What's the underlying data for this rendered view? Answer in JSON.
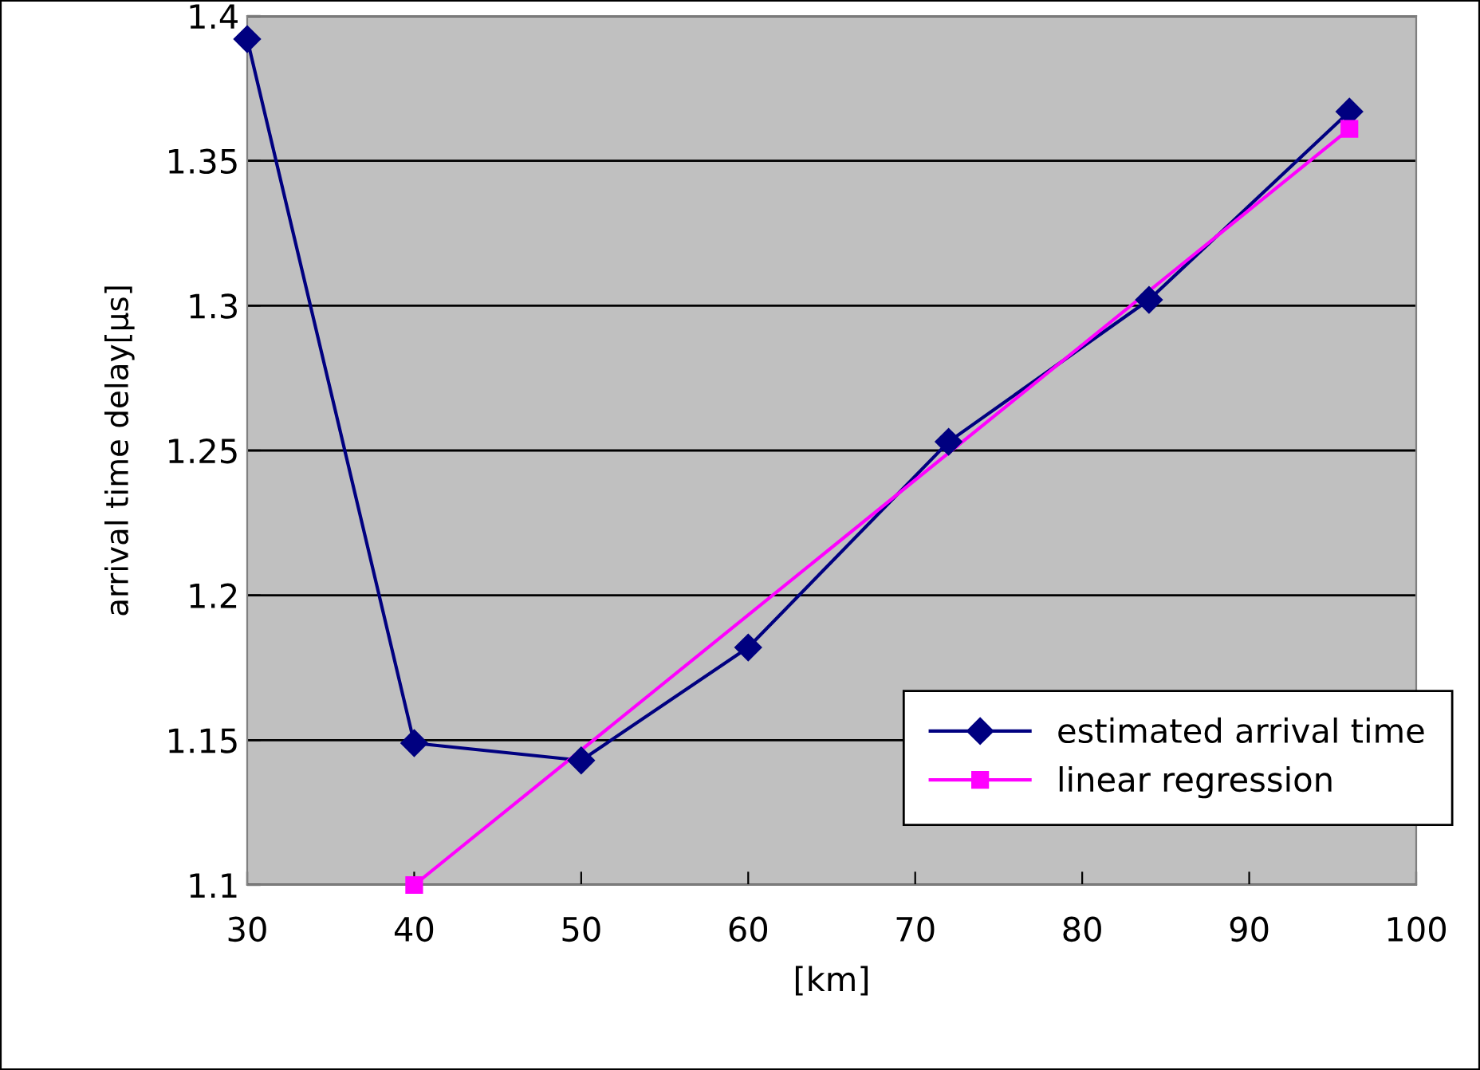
{
  "chart_data": {
    "type": "line",
    "xlabel": "[km]",
    "ylabel": "arrival time delay[μs]",
    "xlim": [
      30,
      100
    ],
    "xticks": [
      30,
      40,
      50,
      60,
      70,
      80,
      90,
      100
    ],
    "ylim": [
      1.1,
      1.4
    ],
    "yticks": [
      1.1,
      1.15,
      1.2,
      1.25,
      1.3,
      1.35,
      1.4
    ],
    "grid": "y",
    "legend": "bottom right",
    "series": [
      {
        "name": "estimated arrival time",
        "color": "#000080",
        "marker": "diamond",
        "x": [
          30,
          40,
          50,
          60,
          72,
          84,
          96
        ],
        "values": [
          1.392,
          1.149,
          1.143,
          1.182,
          1.253,
          1.302,
          1.367
        ]
      },
      {
        "name": "linear regression",
        "color": "#ff00ff",
        "marker": "square",
        "x": [
          40,
          96
        ],
        "values": [
          1.1,
          1.361
        ]
      }
    ]
  }
}
